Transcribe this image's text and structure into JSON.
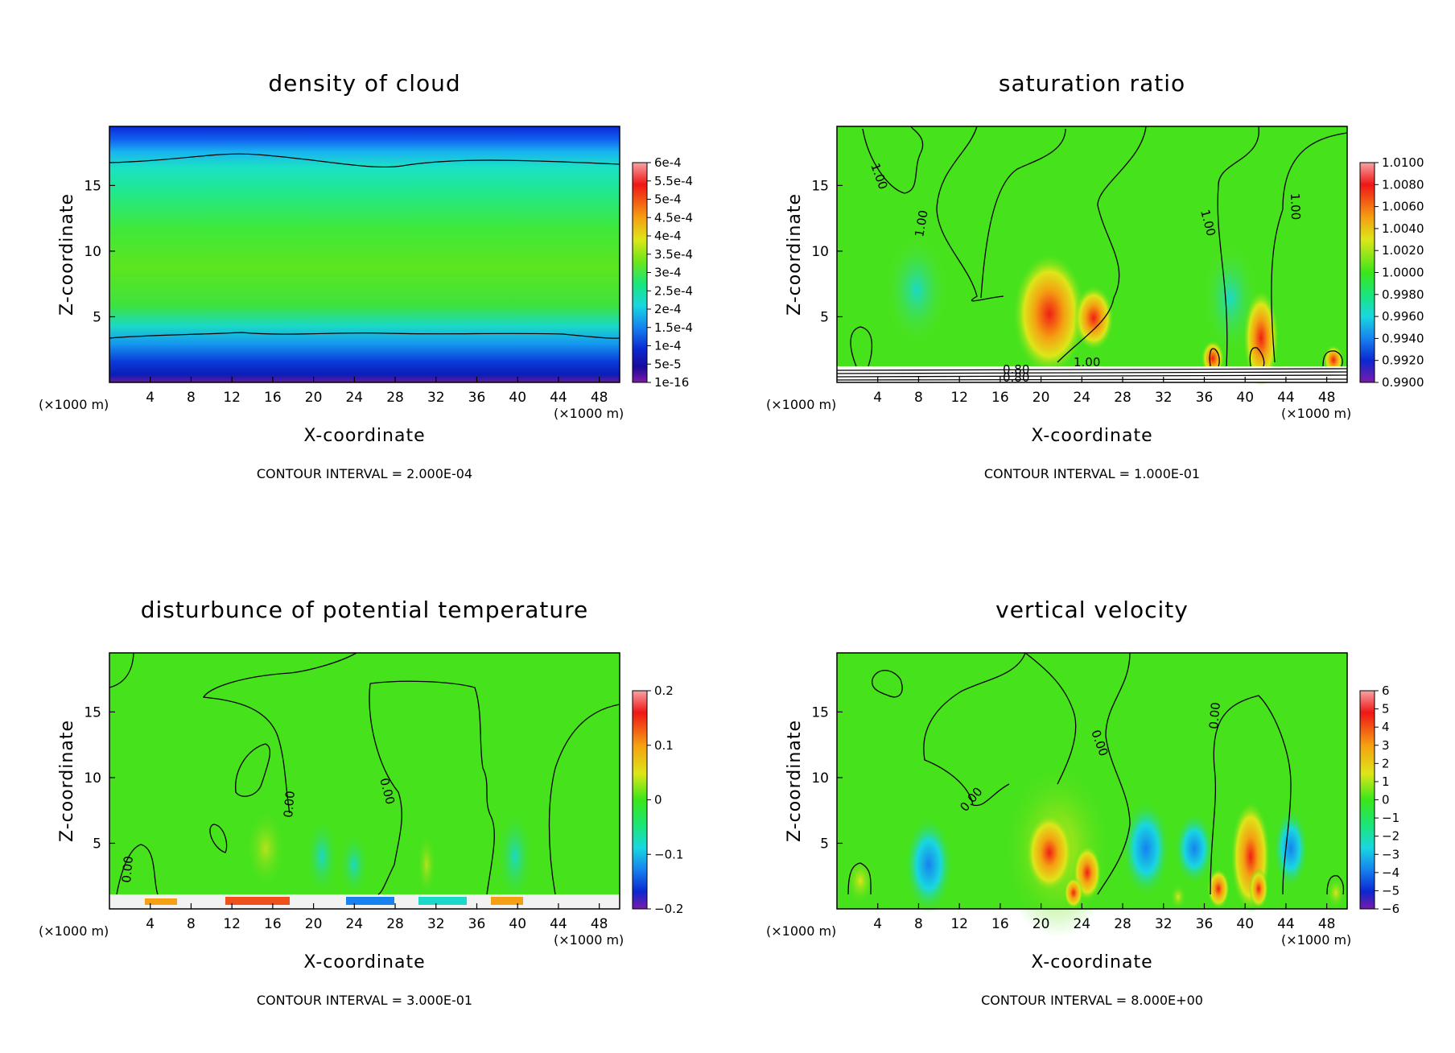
{
  "chart_data": [
    {
      "type": "heatmap",
      "title": "density of cloud",
      "xlabel": "X-coordinate",
      "ylabel": "Z-coordinate",
      "x_unit": "(×1000 m)",
      "xlim": [
        0,
        50
      ],
      "ylim": [
        0,
        19.5
      ],
      "x_ticks": [
        "4",
        "8",
        "12",
        "16",
        "20",
        "24",
        "28",
        "32",
        "36",
        "40",
        "44",
        "48"
      ],
      "y_ticks": [
        "5",
        "10",
        "15"
      ],
      "colorbar_labels": [
        "6e-4",
        "5.5e-4",
        "5e-4",
        "4.5e-4",
        "4e-4",
        "3.5e-4",
        "3e-4",
        "2.5e-4",
        "2e-4",
        "1.5e-4",
        "1e-4",
        "5e-5",
        "1e-16"
      ],
      "contour_interval": "CONTOUR INTERVAL = 2.000E-04",
      "contour_labels": []
    },
    {
      "type": "heatmap",
      "title": "saturation ratio",
      "xlabel": "X-coordinate",
      "ylabel": "Z-coordinate",
      "x_unit": "(×1000 m)",
      "xlim": [
        0,
        50
      ],
      "ylim": [
        0,
        19.5
      ],
      "x_ticks": [
        "4",
        "8",
        "12",
        "16",
        "20",
        "24",
        "28",
        "32",
        "36",
        "40",
        "44",
        "48"
      ],
      "y_ticks": [
        "5",
        "10",
        "15"
      ],
      "colorbar_labels": [
        "1.0100",
        "1.0080",
        "1.0060",
        "1.0040",
        "1.0020",
        "1.0000",
        "0.9980",
        "0.9960",
        "0.9940",
        "0.9920",
        "0.9900"
      ],
      "contour_interval": "CONTOUR INTERVAL = 1.000E-01",
      "contour_labels": [
        "1.00",
        "1.00",
        "1.00",
        "1.00",
        "1.00",
        "0.80",
        "0.80"
      ]
    },
    {
      "type": "heatmap",
      "title": "disturbunce of potential temperature",
      "xlabel": "X-coordinate",
      "ylabel": "Z-coordinate",
      "x_unit": "(×1000 m)",
      "xlim": [
        0,
        50
      ],
      "ylim": [
        0,
        19.5
      ],
      "x_ticks": [
        "4",
        "8",
        "12",
        "16",
        "20",
        "24",
        "28",
        "32",
        "36",
        "40",
        "44",
        "48"
      ],
      "y_ticks": [
        "5",
        "10",
        "15"
      ],
      "colorbar_labels": [
        "0.2",
        "0.1",
        "0",
        "−0.1",
        "−0.2"
      ],
      "contour_interval": "CONTOUR INTERVAL = 3.000E-01",
      "contour_labels": [
        "0.00",
        "0.00",
        "0.00"
      ]
    },
    {
      "type": "heatmap",
      "title": "vertical velocity",
      "xlabel": "X-coordinate",
      "ylabel": "Z-coordinate",
      "x_unit": "(×1000 m)",
      "xlim": [
        0,
        50
      ],
      "ylim": [
        0,
        19.5
      ],
      "x_ticks": [
        "4",
        "8",
        "12",
        "16",
        "20",
        "24",
        "28",
        "32",
        "36",
        "40",
        "44",
        "48"
      ],
      "y_ticks": [
        "5",
        "10",
        "15"
      ],
      "colorbar_labels": [
        "6",
        "5",
        "4",
        "3",
        "2",
        "1",
        "0",
        "−1",
        "−2",
        "−3",
        "−4",
        "−5",
        "−6"
      ],
      "contour_interval": "CONTOUR INTERVAL = 8.000E+00",
      "contour_labels": [
        "0.00",
        "0.00",
        "0.00"
      ]
    }
  ]
}
